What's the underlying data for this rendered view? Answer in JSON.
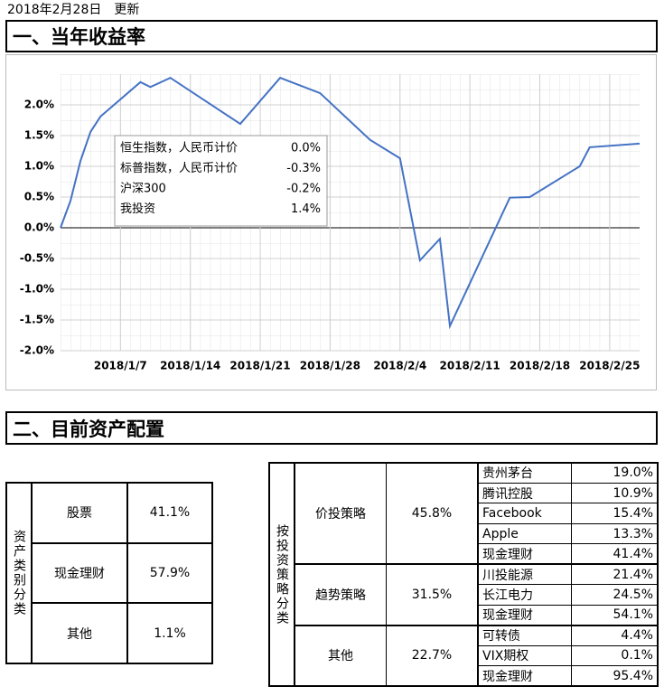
{
  "header": {
    "update": "2018年2月28日　更新"
  },
  "sections": [
    "一、当年收益率",
    "二、目前资产配置"
  ],
  "chart_data": {
    "type": "line",
    "color": "#4472c4",
    "grid": true,
    "x": [
      "2018/1/1",
      "2018/1/2",
      "2018/1/3",
      "2018/1/4",
      "2018/1/5",
      "2018/1/9",
      "2018/1/10",
      "2018/1/12",
      "2018/1/19",
      "2018/1/23",
      "2018/1/27",
      "2018/2/1",
      "2018/2/4",
      "2018/2/6",
      "2018/2/8",
      "2018/2/9",
      "2018/2/15",
      "2018/2/17",
      "2018/2/22",
      "2018/2/23",
      "2018/2/28"
    ],
    "values": [
      0.0,
      0.44,
      1.09,
      1.56,
      1.81,
      2.37,
      2.29,
      2.44,
      1.69,
      2.44,
      2.19,
      1.43,
      1.13,
      -0.53,
      -0.18,
      -1.6,
      0.49,
      0.5,
      1.0,
      1.31,
      1.37
    ],
    "xlim": [
      "2018/1/1",
      "2018/2/28"
    ],
    "xticks": [
      "2018/1/7",
      "2018/1/14",
      "2018/1/21",
      "2018/1/28",
      "2018/2/4",
      "2018/2/11",
      "2018/2/18",
      "2018/2/25"
    ],
    "ylim": [
      -2,
      2.5
    ],
    "yticks": [
      {
        "value": -2,
        "label": "-2.0%"
      },
      {
        "value": -1.5,
        "label": "-1.5%"
      },
      {
        "value": -1,
        "label": "-1.0%"
      },
      {
        "value": -0.5,
        "label": "-0.5%"
      },
      {
        "value": 0,
        "label": "0.0%"
      },
      {
        "value": 0.5,
        "label": "0.5%"
      },
      {
        "value": 1,
        "label": "1.0%"
      },
      {
        "value": 1.5,
        "label": "1.5%"
      },
      {
        "value": 2,
        "label": "2.0%"
      }
    ],
    "annotation_table": [
      [
        "恒生指数，人民币计价",
        "0.0%"
      ],
      [
        "标普指数，人民币计价",
        "-0.3%"
      ],
      [
        "沪深300",
        "-0.2%"
      ],
      [
        "我投资",
        "1.4%"
      ]
    ]
  },
  "asset_table": {
    "header": "资产类别分类",
    "rows": [
      [
        "股票",
        "41.1%"
      ],
      [
        "现金理财",
        "57.9%"
      ],
      [
        "其他",
        "1.1%"
      ]
    ]
  },
  "strategy_table": {
    "header": "按投资策略分类",
    "groups": [
      {
        "name": "价投策略",
        "share": "45.8%",
        "items": [
          [
            "贵州茅台",
            "19.0%"
          ],
          [
            "腾讯控股",
            "10.9%"
          ],
          [
            "Facebook",
            "15.4%"
          ],
          [
            "Apple",
            "13.3%"
          ],
          [
            "现金理财",
            "41.4%"
          ]
        ]
      },
      {
        "name": "趋势策略",
        "share": "31.5%",
        "items": [
          [
            "川投能源",
            "21.4%"
          ],
          [
            "长江电力",
            "24.5%"
          ],
          [
            "现金理财",
            "54.1%"
          ]
        ]
      },
      {
        "name": "其他",
        "share": "22.7%",
        "items": [
          [
            "可转债",
            "4.4%"
          ],
          [
            "VIX期权",
            "0.1%"
          ],
          [
            "现金理财",
            "95.4%"
          ]
        ]
      }
    ]
  }
}
